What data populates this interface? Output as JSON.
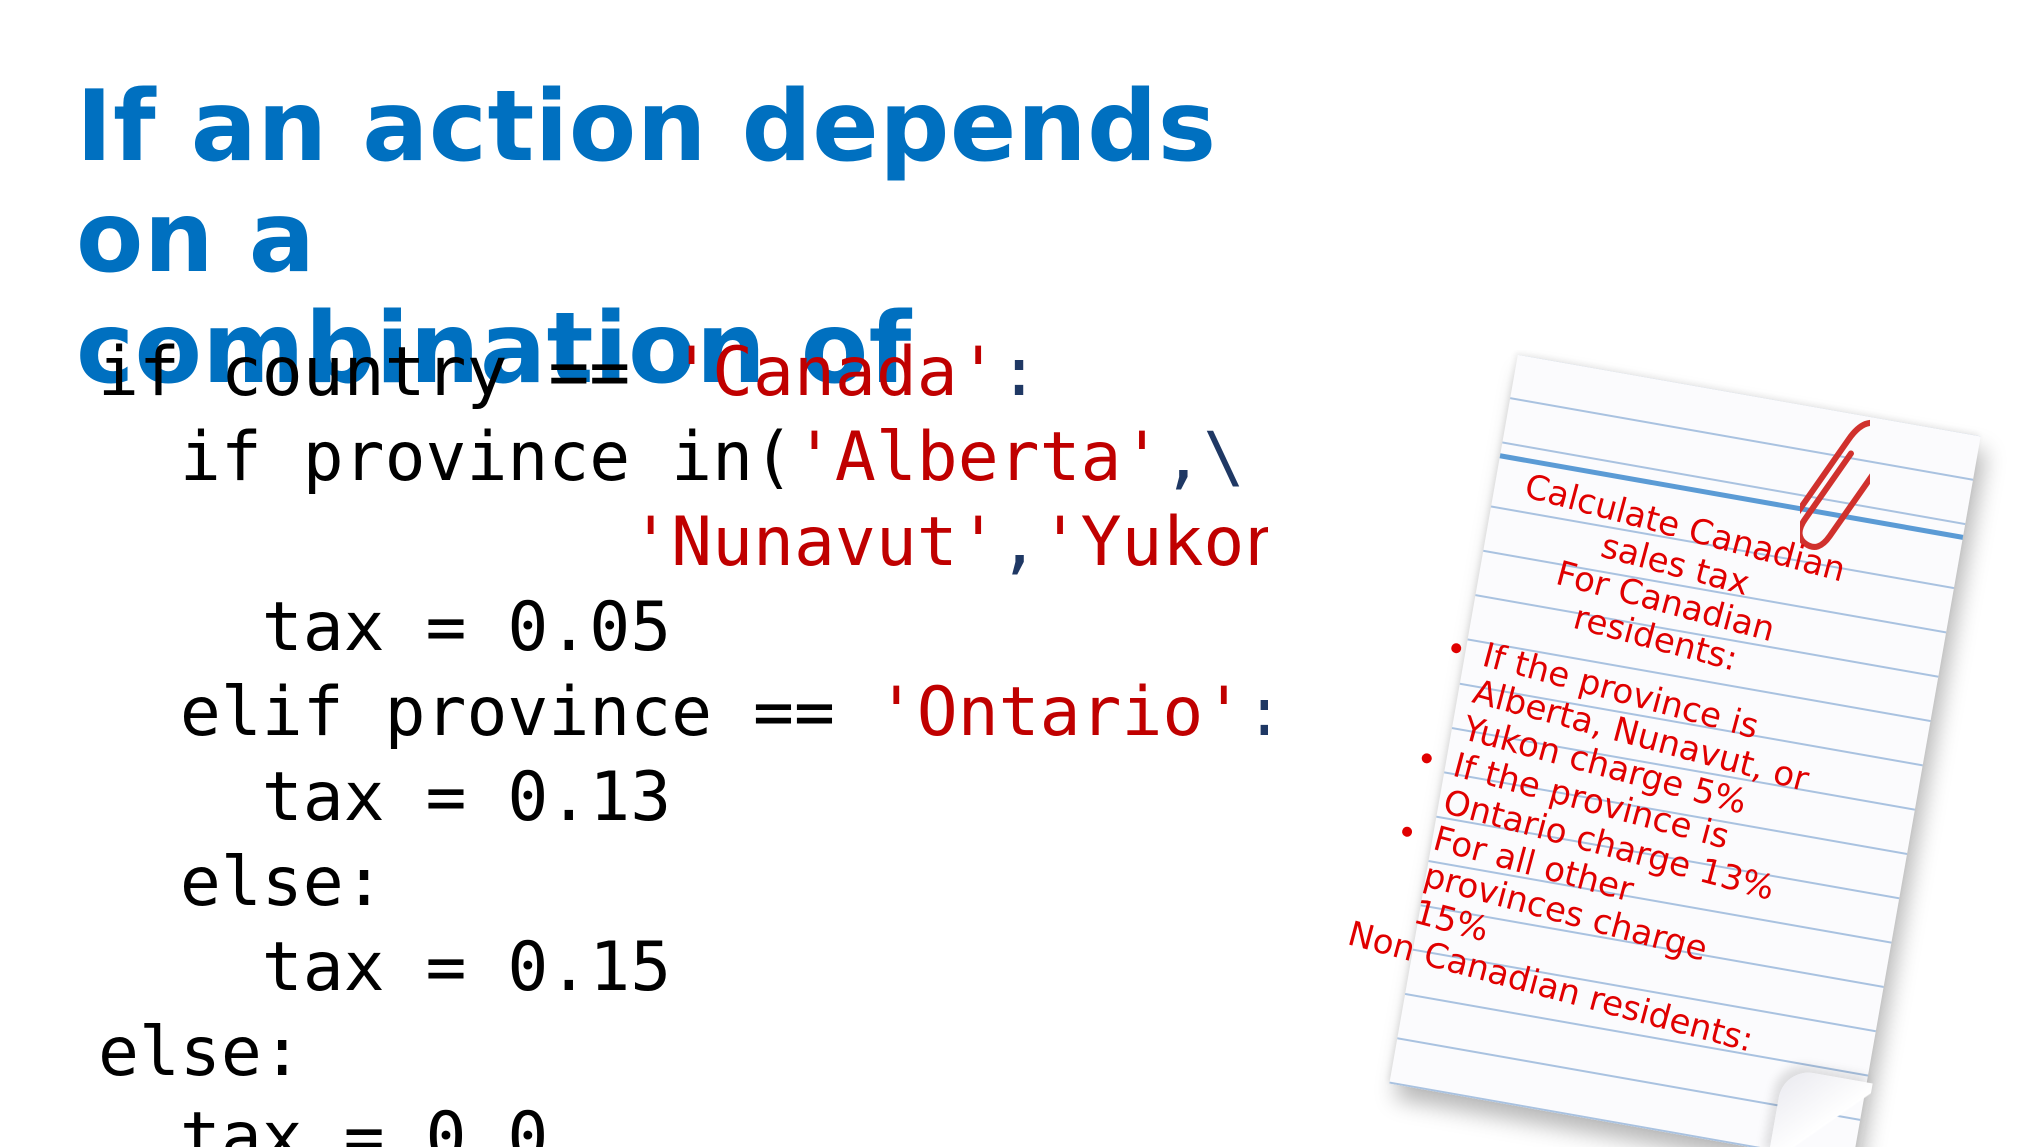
{
  "slide": {
    "title": "If an action depends on a\ncombination of conditions you\ncan nest if statements",
    "code_lines": [
      [
        {
          "t": "if country == ",
          "c": "kw"
        },
        {
          "t": "'Canada'",
          "c": "str"
        },
        {
          "t": ":",
          "c": "punct"
        }
      ],
      [
        {
          "t": "  if province in(",
          "c": "kw"
        },
        {
          "t": "'Alberta'",
          "c": "str"
        },
        {
          "t": ",\\",
          "c": "punct"
        }
      ],
      [
        {
          "t": "             ",
          "c": "kw"
        },
        {
          "t": "'Nunavut'",
          "c": "str"
        },
        {
          "t": ",",
          "c": "punct"
        },
        {
          "t": "'Yukon'",
          "c": "str"
        },
        {
          "t": "):",
          "c": "punct"
        }
      ],
      [
        {
          "t": "    tax = 0.05",
          "c": "kw"
        }
      ],
      [
        {
          "t": "  elif province == ",
          "c": "kw"
        },
        {
          "t": "'Ontario'",
          "c": "str"
        },
        {
          "t": ":",
          "c": "punct"
        }
      ],
      [
        {
          "t": "    tax = 0.13",
          "c": "kw"
        }
      ],
      [
        {
          "t": "  else:",
          "c": "kw"
        }
      ],
      [
        {
          "t": "    tax = 0.15",
          "c": "kw"
        }
      ],
      [
        {
          "t": "else:",
          "c": "kw"
        }
      ],
      [
        {
          "t": "  tax = 0.0",
          "c": "kw"
        }
      ]
    ]
  },
  "note": {
    "heading": "Calculate Canadian\nsales tax\nFor Canadian\nresidents:",
    "items": [
      "If the province is Alberta, Nunavut, or Yukon charge 5%",
      "If the province is Ontario charge 13%",
      "For all other provinces charge 15%"
    ],
    "footer": "Non Canadian residents:"
  },
  "colors": {
    "title": "#0070c0",
    "code_text": "#000000",
    "code_string": "#c00000",
    "note_text": "#e00000",
    "paper_line": "#5b9bd5"
  },
  "icons": {
    "paperclip": "paperclip-icon"
  }
}
